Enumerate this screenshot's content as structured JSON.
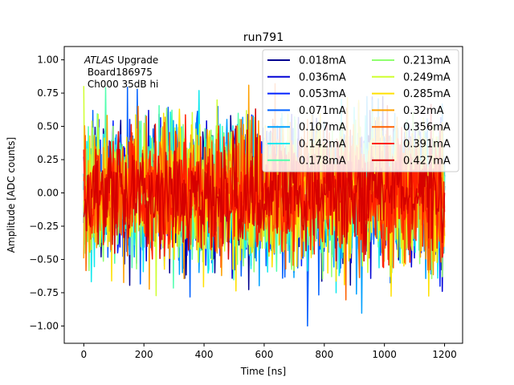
{
  "chart_data": {
    "type": "line",
    "title": "run791",
    "xlabel": "Time [ns]",
    "ylabel": "Amplitude [ADC counts]",
    "xlim": [
      -65,
      1260
    ],
    "ylim": [
      -1.13,
      1.1
    ],
    "xticks": [
      0,
      200,
      400,
      600,
      800,
      1000,
      1200
    ],
    "xtick_labels": [
      "0",
      "200",
      "400",
      "600",
      "800",
      "1000",
      "1200"
    ],
    "yticks": [
      -1.0,
      -0.75,
      -0.5,
      -0.25,
      0.0,
      0.25,
      0.5,
      0.75,
      1.0
    ],
    "ytick_labels": [
      "−1.00",
      "−0.75",
      "−0.50",
      "−0.25",
      "0.00",
      "0.25",
      "0.50",
      "0.75",
      "1.00"
    ],
    "x_range": [
      0,
      1200
    ],
    "n_samples": 480,
    "legend_location": "top-right",
    "legend_columns": 2,
    "annotation": {
      "experiment_italic": "ATLAS",
      "experiment_rest": " Upgrade",
      "line2": " Board186975",
      "line3": " Ch000 35dB hi"
    },
    "series": [
      {
        "name": "0.018mA",
        "color": "#00008f",
        "amplitude": 0.38
      },
      {
        "name": "0.036mA",
        "color": "#0000d6",
        "amplitude": 0.4
      },
      {
        "name": "0.053mA",
        "color": "#0020ff",
        "amplitude": 0.4
      },
      {
        "name": "0.071mA",
        "color": "#0060ff",
        "amplitude": 0.4
      },
      {
        "name": "0.107mA",
        "color": "#00a0ff",
        "amplitude": 0.4
      },
      {
        "name": "0.142mA",
        "color": "#10e8ee",
        "amplitude": 0.4
      },
      {
        "name": "0.178mA",
        "color": "#50ffae",
        "amplitude": 0.4
      },
      {
        "name": "0.213mA",
        "color": "#8fff6f",
        "amplitude": 0.42
      },
      {
        "name": "0.249mA",
        "color": "#cfff2f",
        "amplitude": 0.4
      },
      {
        "name": "0.285mA",
        "color": "#ffe000",
        "amplitude": 0.42
      },
      {
        "name": "0.32mA",
        "color": "#ffa000",
        "amplitude": 0.4
      },
      {
        "name": "0.356mA",
        "color": "#ff6000",
        "amplitude": 0.38
      },
      {
        "name": "0.391mA",
        "color": "#ff2000",
        "amplitude": 0.36
      },
      {
        "name": "0.427mA",
        "color": "#d60000",
        "amplitude": 0.34
      }
    ]
  }
}
